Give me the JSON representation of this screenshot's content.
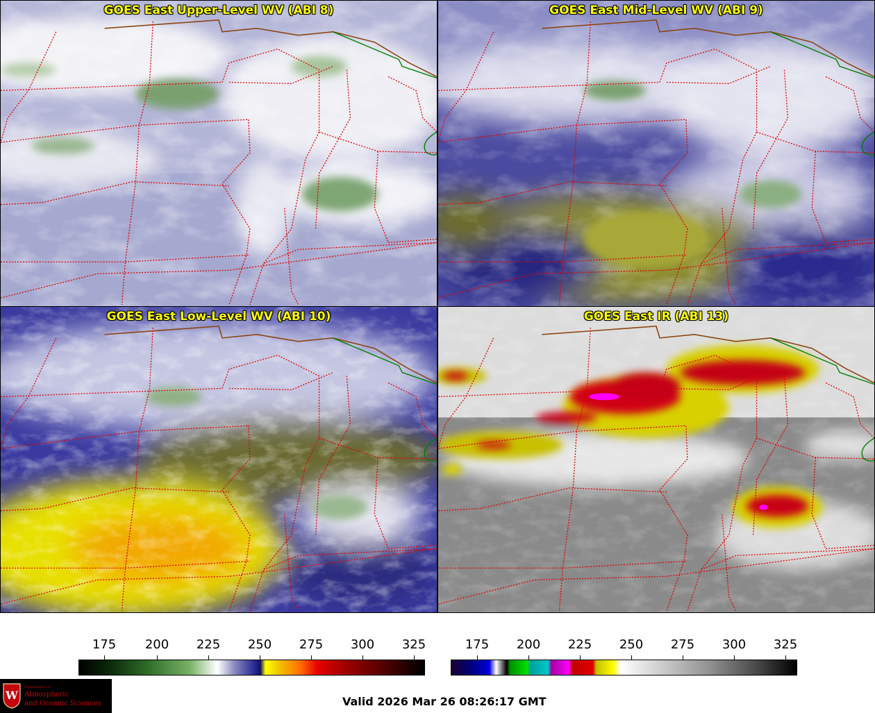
{
  "panels": [
    {
      "title": "GOES East Upper-Level WV (ABI 8)"
    },
    {
      "title": "GOES East Mid-Level WV (ABI 9)"
    },
    {
      "title": "GOES East Low-Level WV (ABI 10)"
    },
    {
      "title": "GOES East IR (ABI 13)"
    }
  ],
  "colorbars": {
    "wv": {
      "ticks": [
        "175",
        "200",
        "225",
        "250",
        "275",
        "300",
        "325"
      ]
    },
    "ir": {
      "ticks": [
        "175",
        "200",
        "225",
        "250",
        "275",
        "300",
        "325"
      ]
    }
  },
  "footer": {
    "valid": "Valid 2026 Mar 26 08:26:17 GMT",
    "logo": {
      "dept": "Department of",
      "line1": "Atmospheric",
      "line2": "and Oceanic Sciences",
      "seal_letter": "W"
    }
  },
  "colors": {
    "title_text": "#ffff00",
    "state_borders": "#e00000",
    "international_border": "#8b4513",
    "canada_border": "#008000",
    "logo_red": "#c5050c"
  }
}
